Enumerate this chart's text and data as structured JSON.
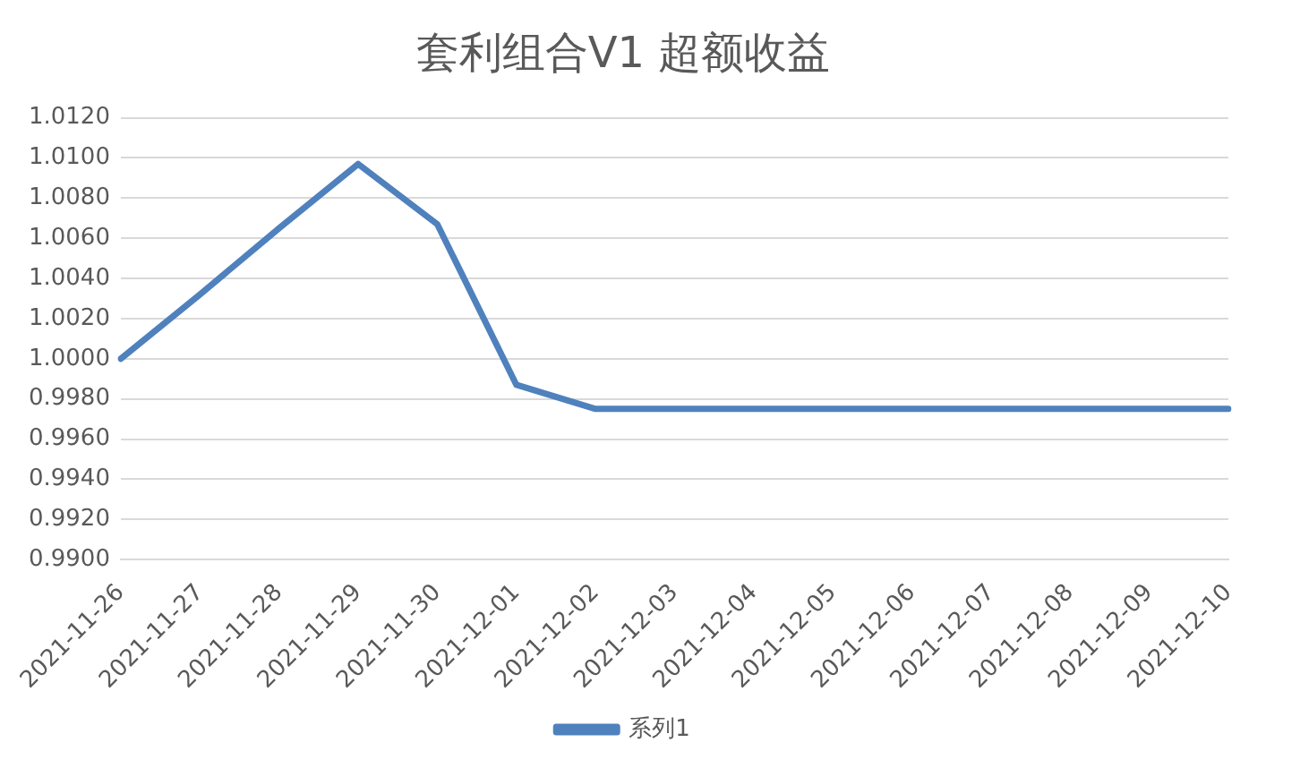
{
  "chart_data": {
    "type": "line",
    "title": "套利组合V1 超额收益",
    "categories": [
      "2021-11-26",
      "2021-11-27",
      "2021-11-28",
      "2021-11-29",
      "2021-11-30",
      "2021-12-01",
      "2021-12-02",
      "2021-12-03",
      "2021-12-04",
      "2021-12-05",
      "2021-12-06",
      "2021-12-07",
      "2021-12-08",
      "2021-12-09",
      "2021-12-10"
    ],
    "series": [
      {
        "name": "系列1",
        "color": "#4f81bd",
        "values": [
          1.0,
          1.0032,
          1.0065,
          1.0097,
          1.0067,
          0.9987,
          0.9975,
          0.9975,
          0.9975,
          0.9975,
          0.9975,
          0.9975,
          0.9975,
          0.9975,
          0.9975
        ]
      }
    ],
    "ylim": [
      0.99,
      1.012
    ],
    "yticks": [
      {
        "value": 0.99,
        "label": "0.9900"
      },
      {
        "value": 0.992,
        "label": "0.9920"
      },
      {
        "value": 0.994,
        "label": "0.9940"
      },
      {
        "value": 0.996,
        "label": "0.9960"
      },
      {
        "value": 0.998,
        "label": "0.9980"
      },
      {
        "value": 1.0,
        "label": "1.0000"
      },
      {
        "value": 1.002,
        "label": "1.0020"
      },
      {
        "value": 1.004,
        "label": "1.0040"
      },
      {
        "value": 1.006,
        "label": "1.0060"
      },
      {
        "value": 1.008,
        "label": "1.0080"
      },
      {
        "value": 1.01,
        "label": "1.0100"
      },
      {
        "value": 1.012,
        "label": "1.0120"
      }
    ],
    "grid": "y",
    "legend": "bottom",
    "marker": "none",
    "line_style": "solid"
  }
}
